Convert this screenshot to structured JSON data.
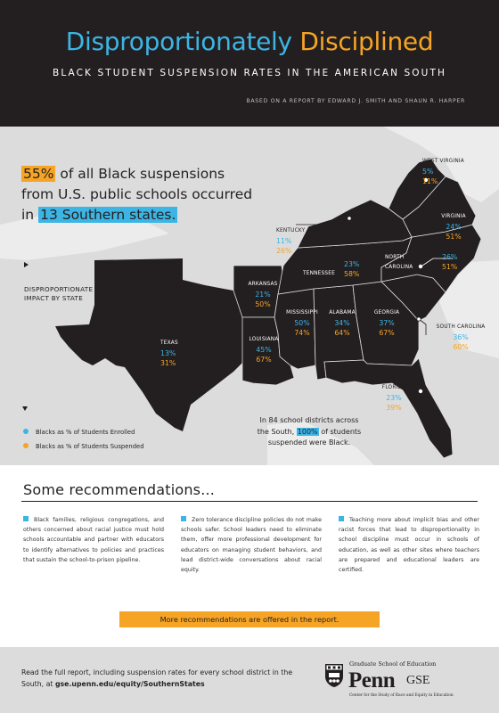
{
  "header": {
    "title_part1": "Disproportionately",
    "title_part2": "Disciplined",
    "subtitle": "BLACK STUDENT SUSPENSION RATES IN THE AMERICAN SOUTH",
    "attribution": "BASED ON A REPORT BY EDWARD J. SMITH AND SHAUN R. HARPER"
  },
  "headline": {
    "pct": "55%",
    "line1_rest": "of all Black suspensions",
    "line2": "from U.S. public schools occurred",
    "line3_pre": "in",
    "states_count": "13 Southern states."
  },
  "map": {
    "impact_label_1": "DISPROPORTIONATE",
    "impact_label_2": "IMPACT BY STATE",
    "states": {
      "west_virginia": {
        "name": "WEST VIRGINIA",
        "enrolled": "5%",
        "suspended": "11%"
      },
      "kentucky": {
        "name": "KENTUCKY",
        "enrolled": "11%",
        "suspended": "26%"
      },
      "virginia": {
        "name": "VIRGINIA",
        "enrolled": "24%",
        "suspended": "51%"
      },
      "north_carolina": {
        "name_1": "NORTH",
        "name_2": "CAROLINA",
        "enrolled": "26%",
        "suspended": "51%"
      },
      "tennessee": {
        "name": "TENNESSEE",
        "enrolled": "23%",
        "suspended": "58%"
      },
      "arkansas": {
        "name": "ARKANSAS",
        "enrolled": "21%",
        "suspended": "50%"
      },
      "mississippi": {
        "name": "MISSISSIPPI",
        "enrolled": "50%",
        "suspended": "74%"
      },
      "alabama": {
        "name": "ALABAMA",
        "enrolled": "34%",
        "suspended": "64%"
      },
      "georgia": {
        "name": "GEORGIA",
        "enrolled": "37%",
        "suspended": "67%"
      },
      "louisiana": {
        "name": "LOUISIANA",
        "enrolled": "45%",
        "suspended": "67%"
      },
      "texas": {
        "name": "TEXAS",
        "enrolled": "13%",
        "suspended": "31%"
      },
      "south_carolina": {
        "name": "SOUTH CAROLINA",
        "enrolled": "36%",
        "suspended": "60%"
      },
      "florida": {
        "name": "FLORIDA",
        "enrolled": "23%",
        "suspended": "39%"
      }
    }
  },
  "legend": {
    "enrolled": "Blacks as % of Students Enrolled",
    "suspended": "Blacks as % of Students Suspended",
    "enrolled_color": "#3cb5e5",
    "suspended_color": "#f6a425"
  },
  "districts": {
    "line1": "In 84 school districts across",
    "line2_pre": "the South,",
    "line2_pct": "100%",
    "line2_post": "of students",
    "line3": "suspended were Black."
  },
  "recommendations": {
    "title": "Some recommendations...",
    "items": [
      "Black families, religious congregations, and others concerned about racial justice must hold schools accountable and partner with educators to identify alternatives to policies and practices that sustain the school-to-prison pipeline.",
      "Zero tolerance discipline policies do not make schools safer. School leaders need to eliminate them, offer more professional development for educators on managing student behaviors, and lead district-wide conversations about racial equity.",
      "Teaching more about implicit bias and other racist forces that lead to disproportionality in school discipline must occur in schools of education, as well as other sites where teachers are prepared and educational leaders are certified."
    ],
    "more": "More recommendations are offered in the report."
  },
  "footer": {
    "text": "Read the full report, including suspension rates for every school district in the South, at",
    "url": "gse.upenn.edu/equity/SouthernStates",
    "logo_top": "Graduate School of Education",
    "logo_penn": "Penn",
    "logo_gse": "GSE",
    "logo_center": "Center for the Study of Race and Equity in Education"
  },
  "colors": {
    "blue": "#3cb5e5",
    "orange": "#f6a425",
    "dark": "#231f20",
    "gray": "#dcdcdc"
  }
}
